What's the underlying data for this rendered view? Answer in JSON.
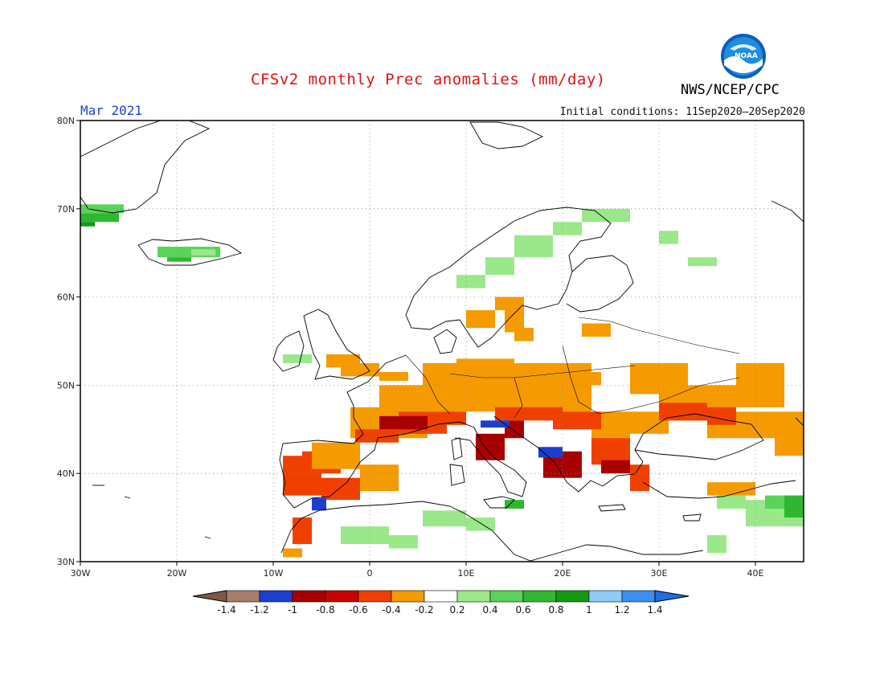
{
  "header": {
    "title": "CFSv2 monthly Prec anomalies (mm/day)",
    "month": "Mar 2021",
    "initial_conditions": "Initial conditions: 11Sep2020–20Sep2020",
    "agency": "NWS/NCEP/CPC",
    "logo_text": "NOAA"
  },
  "map": {
    "lon_ticks": [
      "30W",
      "20W",
      "10W",
      "0",
      "10E",
      "20E",
      "30E",
      "40E"
    ],
    "lat_ticks": [
      "30N",
      "40N",
      "50N",
      "60N",
      "70N",
      "80N"
    ],
    "lon_range": [
      -30,
      45
    ],
    "lat_range": [
      30,
      80
    ]
  },
  "colorbar": {
    "labels": [
      "-1.4",
      "-1.2",
      "-1",
      "-0.8",
      "-0.6",
      "-0.4",
      "-0.2",
      "0.2",
      "0.4",
      "0.6",
      "0.8",
      "1",
      "1.2",
      "1.4"
    ],
    "colors": [
      "#7b5a4a",
      "#a97c6a",
      "#1d3fd0",
      "#a80000",
      "#c80000",
      "#f04000",
      "#f59a00",
      "#ffffff",
      "#9be88a",
      "#5ad35a",
      "#2fb82f",
      "#139a13",
      "#8ecbf5",
      "#3a8ff0",
      "#1e6fe0"
    ]
  },
  "icons": {
    "logo": "noaa-logo-icon"
  }
}
